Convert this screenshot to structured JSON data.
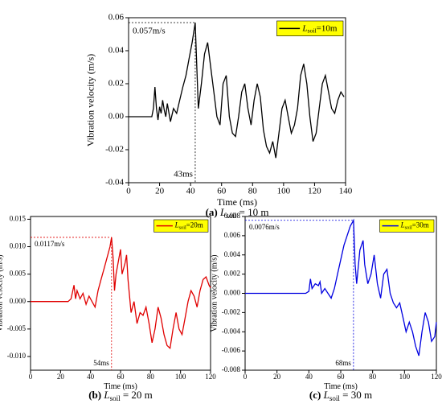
{
  "chart_data": [
    {
      "type": "line",
      "xlabel": "Time (ms)",
      "ylabel": "Vibration velocity (m/s)",
      "xlim": [
        0,
        140
      ],
      "xticks": [
        0,
        20,
        40,
        60,
        80,
        100,
        120,
        140
      ],
      "ylim": [
        -0.04,
        0.06
      ],
      "yticks": [
        {
          "value": -0.04,
          "label": "-0.04"
        },
        {
          "value": -0.02,
          "label": "-0.02"
        },
        {
          "value": 0,
          "label": "0.00"
        },
        {
          "value": 0.02,
          "label": "0.02"
        },
        {
          "value": 0.04,
          "label": "0.04"
        },
        {
          "value": 0.06,
          "label": "0.06"
        }
      ],
      "legend": "upper right",
      "series": [
        {
          "name": "Lsoil=10m",
          "color": "#000000",
          "x": [
            0,
            15,
            16,
            17,
            18,
            19,
            20,
            21,
            22,
            23,
            24,
            25,
            27,
            29,
            31,
            33,
            35,
            37,
            39,
            41,
            43,
            44,
            45,
            47,
            49,
            51,
            53,
            55,
            57,
            59,
            61,
            63,
            65,
            67,
            69,
            71,
            73,
            75,
            77,
            79,
            81,
            83,
            85,
            87,
            89,
            91,
            93,
            95,
            97,
            99,
            101,
            103,
            105,
            107,
            109,
            111,
            113,
            115,
            117,
            119,
            121,
            123,
            125,
            127,
            129,
            131,
            133,
            135,
            137,
            139
          ],
          "values": [
            0,
            0,
            0.005,
            0.018,
            0.005,
            -0.002,
            0.006,
            0.002,
            0.01,
            0.004,
            0,
            0.008,
            -0.003,
            0.005,
            0.002,
            0.01,
            0.018,
            0.025,
            0.035,
            0.045,
            0.057,
            0.03,
            0.005,
            0.02,
            0.038,
            0.045,
            0.03,
            0.015,
            0,
            -0.005,
            0.02,
            0.025,
            0,
            -0.01,
            -0.012,
            0,
            0.015,
            0.02,
            0.005,
            -0.005,
            0.01,
            0.02,
            0.012,
            -0.008,
            -0.018,
            -0.022,
            -0.015,
            -0.025,
            -0.01,
            0.005,
            0.01,
            0,
            -0.01,
            -0.005,
            0.005,
            0.025,
            0.032,
            0.02,
            0,
            -0.015,
            -0.01,
            0.005,
            0.02,
            0.025,
            0.015,
            0.005,
            0.002,
            0.01,
            0.015,
            0.012
          ]
        }
      ],
      "peak": {
        "x": 43,
        "y": 0.057,
        "x_label": "43ms",
        "y_label": "0.057m/s"
      },
      "caption": [
        {
          "text": "(a)",
          "style": "bold"
        },
        {
          "text": " "
        },
        {
          "text": "L",
          "style": "italic"
        },
        {
          "text": "soil",
          "style": "sub"
        },
        {
          "text": " = 10 m"
        }
      ]
    },
    {
      "type": "line",
      "xlabel": "Time (ms)",
      "ylabel": "Vibration velocity (m/s)",
      "xlim": [
        0,
        120
      ],
      "xticks": [
        0,
        20,
        40,
        60,
        80,
        100,
        120
      ],
      "ylim": [
        -0.0125,
        0.0155
      ],
      "yticks": [
        {
          "value": -0.01,
          "label": "-0.010"
        },
        {
          "value": -0.005,
          "label": "-0.005"
        },
        {
          "value": 0,
          "label": "0.000"
        },
        {
          "value": 0.005,
          "label": "0.005"
        },
        {
          "value": 0.01,
          "label": "0.010"
        },
        {
          "value": 0.015,
          "label": "0.015"
        }
      ],
      "legend": "upper right",
      "series": [
        {
          "name": "Lsoil=20m",
          "color": "#e00000",
          "x": [
            0,
            25,
            27,
            29,
            30,
            31,
            33,
            35,
            37,
            39,
            41,
            43,
            45,
            47,
            49,
            51,
            53,
            54,
            55,
            56,
            57,
            59,
            60,
            61,
            63,
            64,
            65,
            67,
            69,
            71,
            73,
            75,
            77,
            79,
            81,
            83,
            85,
            87,
            89,
            91,
            93,
            95,
            97,
            99,
            101,
            103,
            105,
            107,
            109,
            111,
            113,
            115,
            117,
            119,
            120
          ],
          "values": [
            0,
            0,
            0.0005,
            0.003,
            0.0005,
            0.002,
            0.0005,
            0.0015,
            -0.0005,
            0.001,
            0,
            -0.001,
            0.002,
            0.004,
            0.006,
            0.008,
            0.01,
            0.0117,
            0.008,
            0.002,
            0.005,
            0.008,
            0.0095,
            0.005,
            0.007,
            0.0085,
            0.004,
            -0.002,
            0,
            -0.004,
            -0.002,
            -0.0025,
            -0.001,
            -0.004,
            -0.0075,
            -0.005,
            -0.001,
            -0.003,
            -0.006,
            -0.008,
            -0.0085,
            -0.005,
            -0.002,
            -0.005,
            -0.006,
            -0.003,
            0,
            0.002,
            0.001,
            -0.001,
            0.002,
            0.004,
            0.0045,
            0.003,
            0.0025
          ]
        }
      ],
      "peak": {
        "x": 54,
        "y": 0.0117,
        "x_label": "54ms",
        "y_label": "0.0117m/s"
      },
      "caption": [
        {
          "text": "(b)",
          "style": "bold"
        },
        {
          "text": " "
        },
        {
          "text": "L",
          "style": "italic"
        },
        {
          "text": "soil",
          "style": "sub"
        },
        {
          "text": " = 20 m"
        }
      ]
    },
    {
      "type": "line",
      "xlabel": "Time (ms)",
      "ylabel": "Vibration velocity (m/s)",
      "xlim": [
        0,
        120
      ],
      "xticks": [
        0,
        20,
        40,
        60,
        80,
        100,
        120
      ],
      "ylim": [
        -0.008,
        0.008
      ],
      "yticks": [
        -0.008,
        -0.006,
        -0.004,
        -0.002,
        {
          "value": 0,
          "label": "0.000"
        },
        0.002,
        0.004,
        0.006,
        0.008
      ],
      "legend": "upper right",
      "series": [
        {
          "name": "Lsoil=30m",
          "color": "#0000e0",
          "x": [
            0,
            38,
            40,
            41,
            42,
            44,
            46,
            47,
            48,
            50,
            52,
            54,
            56,
            58,
            60,
            62,
            64,
            66,
            68,
            69,
            70,
            72,
            74,
            75,
            77,
            79,
            81,
            83,
            85,
            87,
            89,
            91,
            93,
            95,
            97,
            99,
            101,
            103,
            105,
            107,
            109,
            111,
            113,
            115,
            117,
            119,
            120
          ],
          "values": [
            0,
            0,
            0.0002,
            0.0015,
            0.0005,
            0.001,
            0.0008,
            0.0012,
            0,
            0.0005,
            0,
            -0.0005,
            0.0005,
            0.002,
            0.0035,
            0.005,
            0.006,
            0.007,
            0.0076,
            0.003,
            0.001,
            0.0045,
            0.0055,
            0.003,
            0.001,
            0.002,
            0.004,
            0.001,
            -0.0005,
            0.002,
            0.0025,
            0,
            -0.001,
            -0.0015,
            -0.001,
            -0.0025,
            -0.004,
            -0.003,
            -0.004,
            -0.0055,
            -0.0065,
            -0.004,
            -0.002,
            -0.003,
            -0.005,
            -0.0045,
            -0.003
          ]
        }
      ],
      "peak": {
        "x": 68,
        "y": 0.0076,
        "x_label": "68ms",
        "y_label": "0.0076m/s"
      },
      "caption": [
        {
          "text": "(c)",
          "style": "bold"
        },
        {
          "text": " "
        },
        {
          "text": "L",
          "style": "italic"
        },
        {
          "text": "soil",
          "style": "sub"
        },
        {
          "text": " = 30 m"
        }
      ]
    }
  ]
}
